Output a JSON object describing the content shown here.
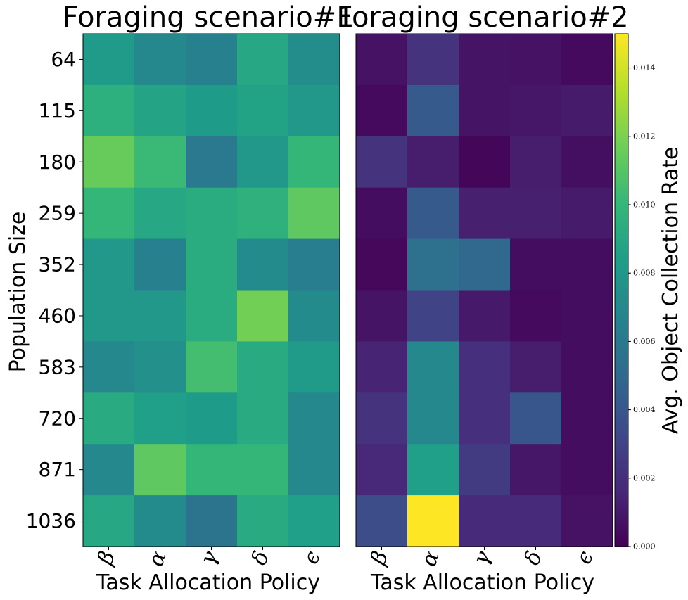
{
  "chart_data": [
    {
      "type": "heatmap",
      "title": "Foraging scenario#1",
      "xlabel": "Task Allocation Policy",
      "ylabel": "Population Size",
      "x_categories": [
        "β",
        "α",
        "γ",
        "δ",
        "ϵ"
      ],
      "y_categories": [
        "64",
        "115",
        "180",
        "259",
        "352",
        "460",
        "583",
        "720",
        "871",
        "1036"
      ],
      "values": [
        [
          0.0082,
          0.007,
          0.0065,
          0.009,
          0.0073
        ],
        [
          0.0095,
          0.0088,
          0.0083,
          0.0087,
          0.008
        ],
        [
          0.0115,
          0.0102,
          0.006,
          0.008,
          0.01
        ],
        [
          0.01,
          0.009,
          0.0093,
          0.0096,
          0.0113
        ],
        [
          0.008,
          0.0065,
          0.0093,
          0.0072,
          0.0063
        ],
        [
          0.008,
          0.008,
          0.0093,
          0.0118,
          0.0072
        ],
        [
          0.007,
          0.0075,
          0.0105,
          0.0092,
          0.0082
        ],
        [
          0.0092,
          0.0085,
          0.0083,
          0.0092,
          0.007
        ],
        [
          0.007,
          0.0113,
          0.01,
          0.01,
          0.007
        ],
        [
          0.009,
          0.0072,
          0.0057,
          0.0092,
          0.0085
        ]
      ]
    },
    {
      "type": "heatmap",
      "title": "Foraging scenario#2",
      "xlabel": "Task Allocation Policy",
      "ylabel": "",
      "x_categories": [
        "β",
        "α",
        "γ",
        "δ",
        "ϵ"
      ],
      "y_categories": [
        "64",
        "115",
        "180",
        "259",
        "352",
        "460",
        "583",
        "720",
        "871",
        "1036"
      ],
      "values": [
        [
          0.0007,
          0.0022,
          0.0008,
          0.0007,
          0.0004
        ],
        [
          0.0004,
          0.0042,
          0.0008,
          0.0009,
          0.0011
        ],
        [
          0.0022,
          0.0012,
          0.0002,
          0.0012,
          0.0006
        ],
        [
          0.0005,
          0.0042,
          0.0013,
          0.0013,
          0.0011
        ],
        [
          0.0003,
          0.0055,
          0.005,
          0.0005,
          0.0005
        ],
        [
          0.0008,
          0.003,
          0.001,
          0.0004,
          0.0005
        ],
        [
          0.0015,
          0.007,
          0.002,
          0.0012,
          0.0005
        ],
        [
          0.0022,
          0.007,
          0.002,
          0.004,
          0.0005
        ],
        [
          0.0017,
          0.0085,
          0.0026,
          0.0009,
          0.0005
        ],
        [
          0.0035,
          0.015,
          0.0018,
          0.0018,
          0.0007
        ]
      ]
    }
  ],
  "colorbar": {
    "label": "Avg. Object Collection Rate",
    "range": [
      0.0,
      0.015
    ],
    "ticks": [
      "0.000",
      "0.002",
      "0.004",
      "0.006",
      "0.008",
      "0.010",
      "0.012",
      "0.014"
    ],
    "tick_values": [
      0.0,
      0.002,
      0.004,
      0.006,
      0.008,
      0.01,
      0.012,
      0.014
    ],
    "colormap": "viridis"
  }
}
